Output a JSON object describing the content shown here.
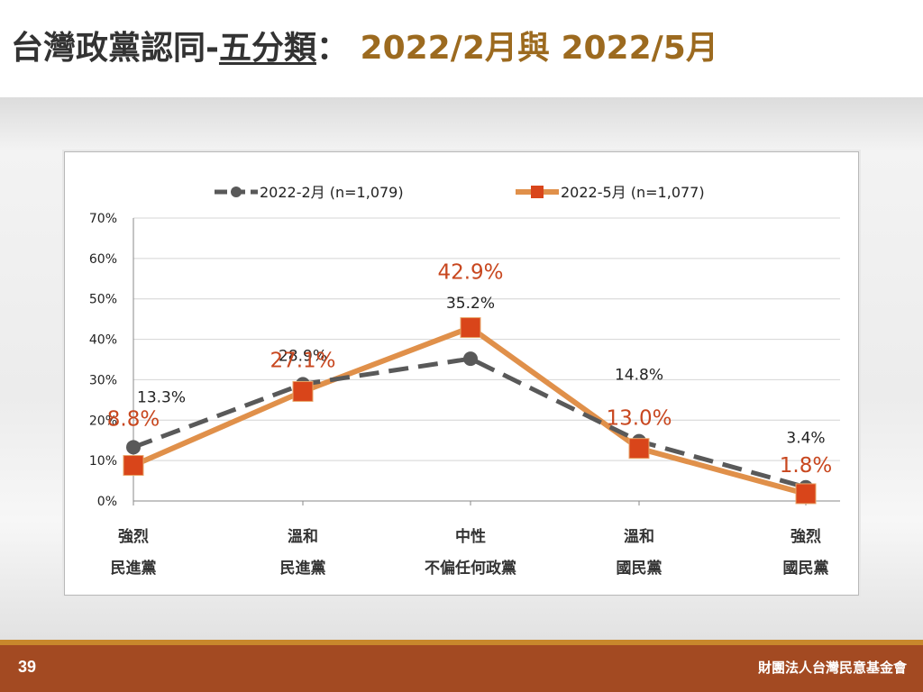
{
  "header": {
    "title_prefix": "台灣政黨認同-",
    "title_underlined": "五分類",
    "title_colon": "：",
    "title_dates": "2022/2月與 2022/5月"
  },
  "footer": {
    "page_number": "39",
    "organization": "財團法人台灣民意基金會"
  },
  "colors": {
    "series_feb": "#595959",
    "series_may_line": "#e0904a",
    "series_may_marker": "#d9451a",
    "may_label": "#c8471f",
    "footer_bg": "#a34a22",
    "footer_line": "#c8872c",
    "title_date": "#9c6a1f"
  },
  "chart_data": {
    "type": "line",
    "categories": [
      [
        "強烈",
        "民進黨"
      ],
      [
        "溫和",
        "民進黨"
      ],
      [
        "中性",
        "不偏任何政黨"
      ],
      [
        "溫和",
        "國民黨"
      ],
      [
        "強烈",
        "國民黨"
      ]
    ],
    "series": [
      {
        "name": "2022-2月 (n=1,079)",
        "values": [
          13.3,
          28.9,
          35.2,
          14.8,
          3.4
        ],
        "labels": [
          "13.3%",
          "28.9%",
          "35.2%",
          "14.8%",
          "3.4%"
        ],
        "style": "dashed",
        "marker": "circle"
      },
      {
        "name": "2022-5月 (n=1,077)",
        "values": [
          8.8,
          27.1,
          42.9,
          13.0,
          1.8
        ],
        "labels": [
          "8.8%",
          "27.1%",
          "42.9%",
          "13.0%",
          "1.8%"
        ],
        "style": "solid",
        "marker": "square"
      }
    ],
    "ylim": [
      0,
      70
    ],
    "yticks": [
      "0%",
      "10%",
      "20%",
      "30%",
      "40%",
      "50%",
      "60%",
      "70%"
    ],
    "grid": true,
    "legend_position": "top"
  }
}
